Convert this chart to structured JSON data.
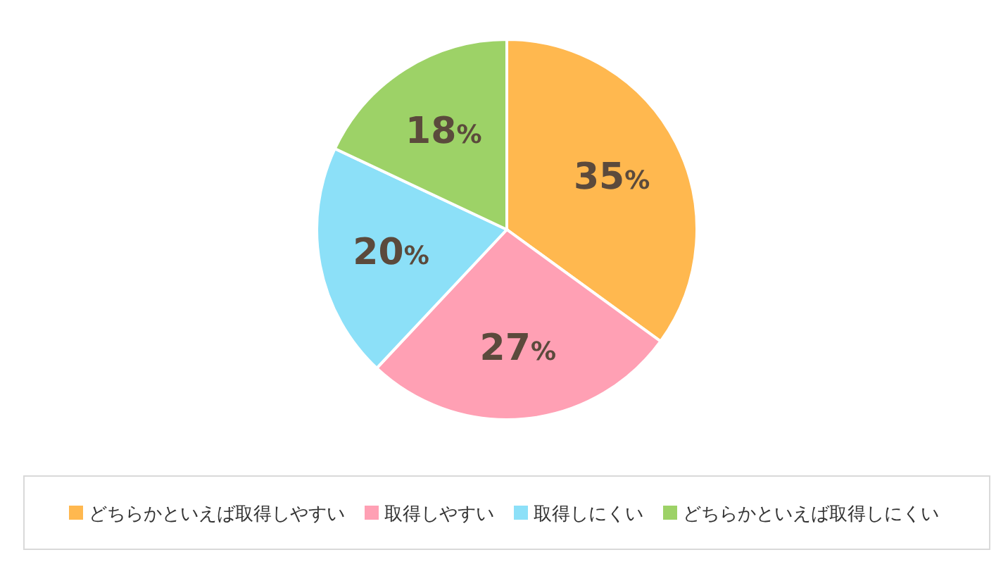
{
  "chart_data": {
    "type": "pie",
    "categories": [
      "どちらかといえば取得しやすい",
      "取得しやすい",
      "取得しにくい",
      "どちらかといえば取得しにくい"
    ],
    "values": [
      35,
      27,
      20,
      18
    ],
    "colors": [
      "#ffb84f",
      "#ffa0b4",
      "#8ce0f8",
      "#9dd267"
    ],
    "value_labels": [
      "35%",
      "27%",
      "20%",
      "18%"
    ],
    "legend": "bottom"
  }
}
